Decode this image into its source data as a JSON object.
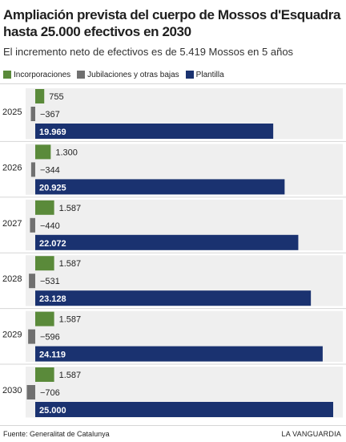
{
  "header": {
    "title": "Ampliación prevista del cuerpo de Mossos d'Esquadra hasta 25.000 efectivos en 2030",
    "subtitle": "El incremento neto de efectivos es de 5.419 Mossos en 5 años"
  },
  "legend": {
    "items": [
      {
        "label": "Incorporaciones",
        "color": "#5a8a3a"
      },
      {
        "label": "Jubilaciones y otras bajas",
        "color": "#707070"
      },
      {
        "label": "Plantilla",
        "color": "#1a3270"
      }
    ]
  },
  "footer": {
    "source": "Fuente: Generalitat de Catalunya",
    "brand": "LA VANGUARDIA"
  },
  "chart_data": {
    "type": "bar",
    "orientation": "horizontal",
    "categories": [
      "2025",
      "2026",
      "2027",
      "2028",
      "2029",
      "2030"
    ],
    "series": [
      {
        "name": "Incorporaciones",
        "color": "#5a8a3a",
        "values": [
          755,
          1300,
          1587,
          1587,
          1587,
          1587
        ],
        "labels": [
          "755",
          "1.300",
          "1.587",
          "1.587",
          "1.587",
          "1.587"
        ]
      },
      {
        "name": "Jubilaciones y otras bajas",
        "color": "#707070",
        "values": [
          -367,
          -344,
          -440,
          -531,
          -596,
          -706
        ],
        "labels": [
          "−367",
          "−344",
          "−440",
          "−531",
          "−596",
          "−706"
        ]
      },
      {
        "name": "Plantilla",
        "color": "#1a3270",
        "values": [
          19969,
          20925,
          22072,
          23128,
          24119,
          25000
        ],
        "labels": [
          "19.969",
          "20.925",
          "22.072",
          "23.128",
          "24.119",
          "25.000"
        ]
      }
    ],
    "xlim": [
      -1000,
      25000
    ],
    "grid": false,
    "legend_position": "top"
  }
}
